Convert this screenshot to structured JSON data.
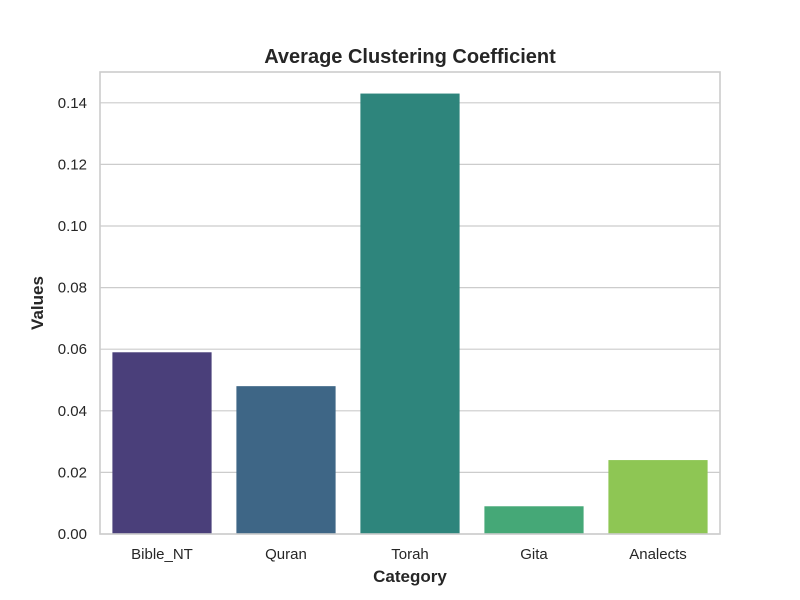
{
  "chart_data": {
    "type": "bar",
    "title": "Average Clustering Coefficient",
    "xlabel": "Category",
    "ylabel": "Values",
    "categories": [
      "Bible_NT",
      "Quran",
      "Torah",
      "Gita",
      "Analects"
    ],
    "values": [
      0.059,
      0.048,
      0.143,
      0.009,
      0.024
    ],
    "colors": [
      "#4a3f7a",
      "#3e6686",
      "#2e857c",
      "#45a877",
      "#8ec654"
    ],
    "ylim": [
      0,
      0.15
    ],
    "yticks": [
      "0.00",
      "0.02",
      "0.04",
      "0.06",
      "0.08",
      "0.10",
      "0.12",
      "0.14"
    ],
    "grid": "horizontal"
  }
}
